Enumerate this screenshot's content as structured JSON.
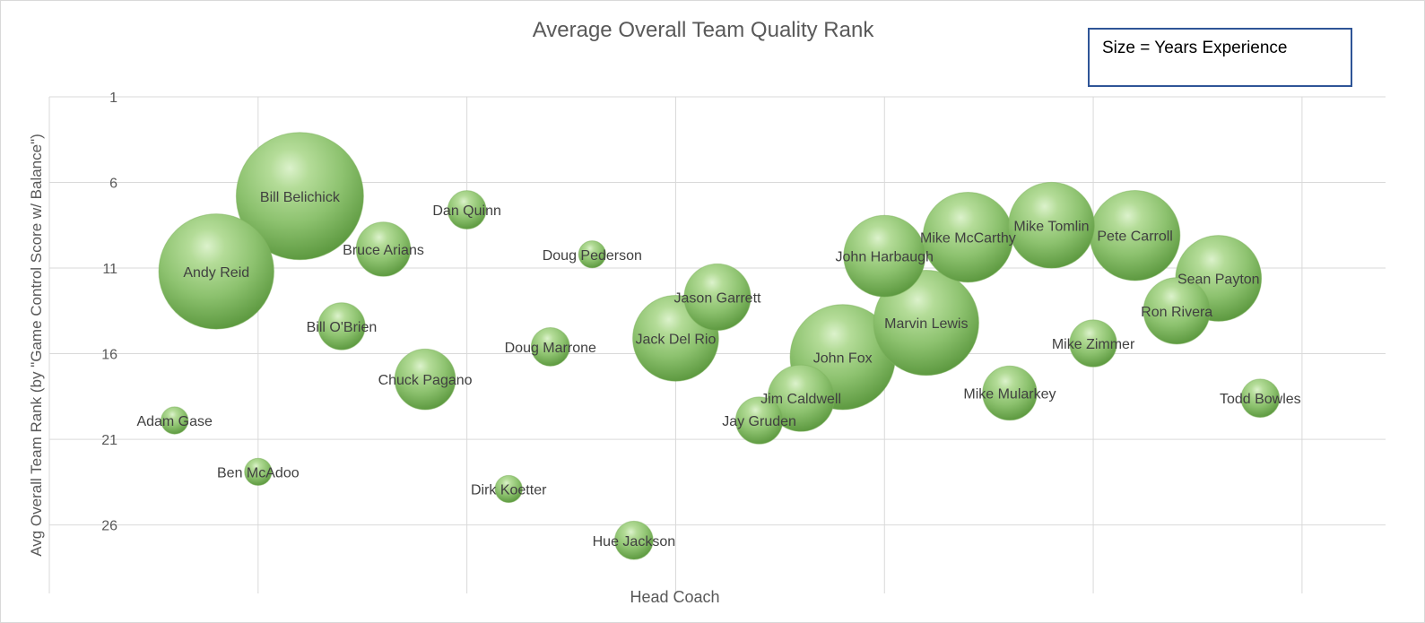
{
  "chart_data": {
    "type": "bubble",
    "title": "Average Overall Team Quality Rank",
    "xlabel": "Head Coach",
    "ylabel": "Avg Overall Team Rank (by \"Game Control Score w/ Balance\")",
    "size_note": "Size = Years Experience",
    "y_ticks": [
      "1",
      "6",
      "11",
      "16",
      "21",
      "26"
    ],
    "ylim": [
      1,
      30
    ],
    "y_reversed": true,
    "xlim": [
      0,
      32
    ],
    "grid": true,
    "bubble_color": "#8dc26f",
    "points": [
      {
        "name": "Adam Gase",
        "x": 3,
        "y": 19.9,
        "size": 1
      },
      {
        "name": "Andy Reid",
        "x": 4,
        "y": 11.2,
        "size": 18
      },
      {
        "name": "Ben McAdoo",
        "x": 5,
        "y": 22.9,
        "size": 1
      },
      {
        "name": "Bill Belichick",
        "x": 6,
        "y": 6.8,
        "size": 22
      },
      {
        "name": "Bill O'Brien",
        "x": 7,
        "y": 14.4,
        "size": 3
      },
      {
        "name": "Bruce Arians",
        "x": 8,
        "y": 9.9,
        "size": 4
      },
      {
        "name": "Chuck Pagano",
        "x": 9,
        "y": 17.5,
        "size": 5
      },
      {
        "name": "Dan Quinn",
        "x": 10,
        "y": 7.6,
        "size": 2
      },
      {
        "name": "Dirk Koetter",
        "x": 11,
        "y": 23.9,
        "size": 1
      },
      {
        "name": "Doug Marrone",
        "x": 12,
        "y": 15.6,
        "size": 2
      },
      {
        "name": "Doug Pederson",
        "x": 13,
        "y": 10.2,
        "size": 1
      },
      {
        "name": "Hue Jackson",
        "x": 14,
        "y": 26.9,
        "size": 2
      },
      {
        "name": "Jack Del Rio",
        "x": 15,
        "y": 15.1,
        "size": 10
      },
      {
        "name": "Jason Garrett",
        "x": 16,
        "y": 12.7,
        "size": 6
      },
      {
        "name": "Jay Gruden",
        "x": 17,
        "y": 19.9,
        "size": 3
      },
      {
        "name": "Jim Caldwell",
        "x": 18,
        "y": 18.6,
        "size": 6
      },
      {
        "name": "John Fox",
        "x": 19,
        "y": 16.2,
        "size": 15
      },
      {
        "name": "John Harbaugh",
        "x": 20,
        "y": 10.3,
        "size": 9
      },
      {
        "name": "Marvin Lewis",
        "x": 21,
        "y": 14.2,
        "size": 15
      },
      {
        "name": "Mike McCarthy",
        "x": 22,
        "y": 9.2,
        "size": 11
      },
      {
        "name": "Mike Mularkey",
        "x": 23,
        "y": 18.3,
        "size": 4
      },
      {
        "name": "Mike Tomlin",
        "x": 24,
        "y": 8.5,
        "size": 10
      },
      {
        "name": "Mike Zimmer",
        "x": 25,
        "y": 15.4,
        "size": 3
      },
      {
        "name": "Pete Carroll",
        "x": 26,
        "y": 9.1,
        "size": 11
      },
      {
        "name": "Ron Rivera",
        "x": 27,
        "y": 13.5,
        "size": 6
      },
      {
        "name": "Sean Payton",
        "x": 28,
        "y": 11.6,
        "size": 10
      },
      {
        "name": "Todd Bowles",
        "x": 29,
        "y": 18.6,
        "size": 2
      }
    ]
  }
}
